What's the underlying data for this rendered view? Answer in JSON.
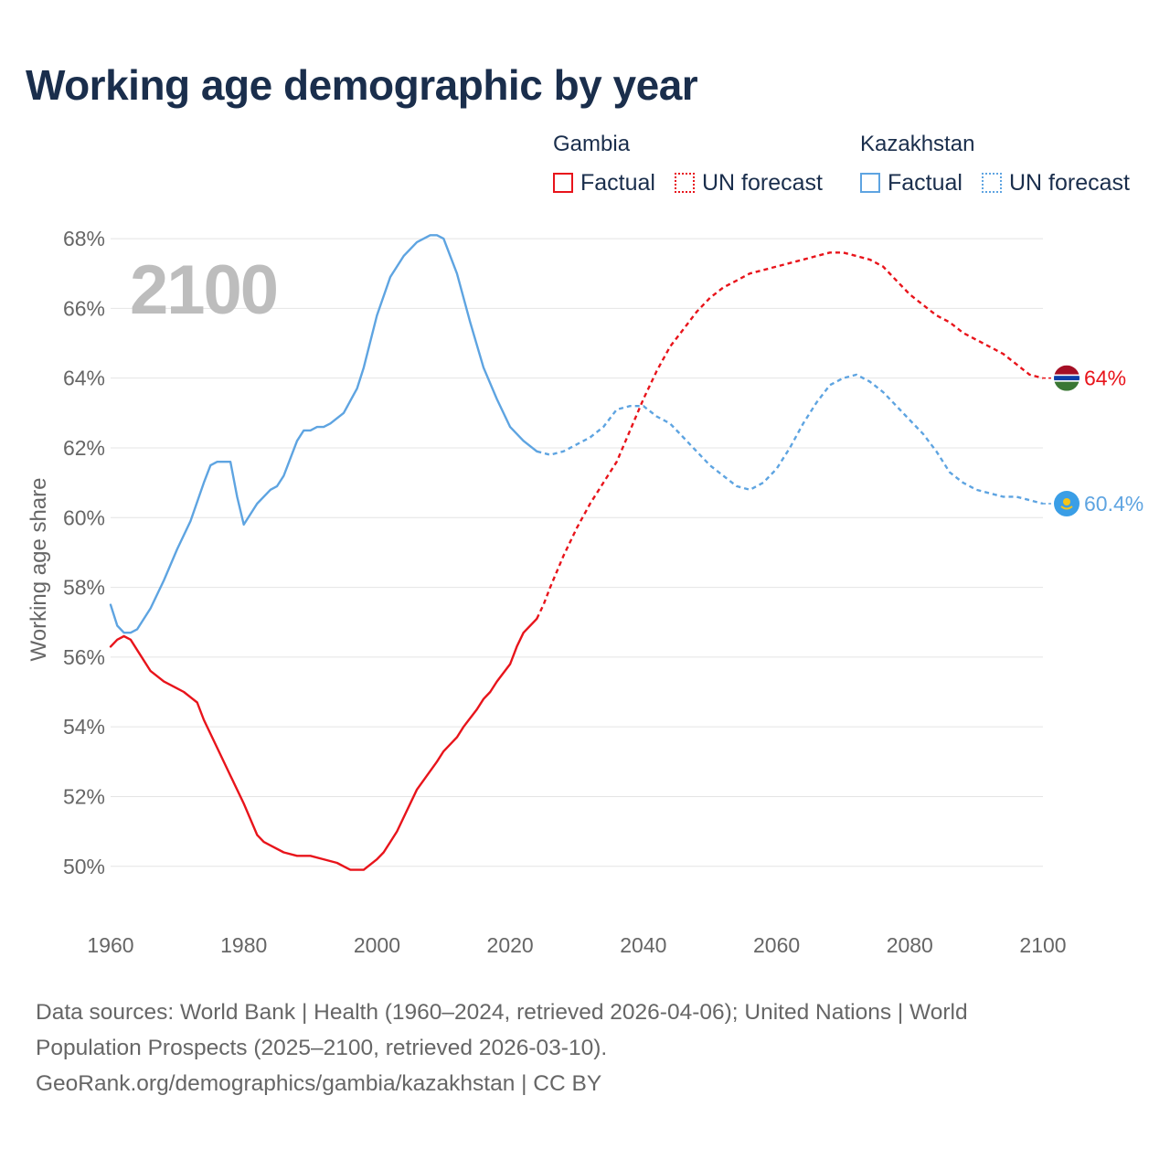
{
  "title": "Working age demographic by year",
  "legend": {
    "groups": [
      {
        "name": "Gambia",
        "color": "#e8141b",
        "factual_label": "Factual",
        "forecast_label": "UN forecast"
      },
      {
        "name": "Kazakhstan",
        "color": "#5ea4e1",
        "factual_label": "Factual",
        "forecast_label": "UN forecast"
      }
    ]
  },
  "year_label": "2100",
  "footer": {
    "line1": "Data sources: World Bank | Health (1960–2024, retrieved 2026-04-06); United Nations | World",
    "line2": "Population Prospects (2025–2100, retrieved 2026-03-10).",
    "line3": "GeoRank.org/demographics/gambia/kazakhstan | CC BY"
  },
  "chart_data": {
    "type": "line",
    "title": "Working age demographic by year",
    "xlabel": "",
    "ylabel": "Working age share",
    "xlim": [
      1960,
      2100
    ],
    "ylim": [
      48.5,
      68.5
    ],
    "xticks": [
      1960,
      1980,
      2000,
      2020,
      2040,
      2060,
      2080,
      2100
    ],
    "xtick_labels": [
      "1960",
      "1980",
      "2000",
      "2020",
      "2040",
      "2060",
      "2080",
      "2100"
    ],
    "yticks": [
      50,
      52,
      54,
      56,
      58,
      60,
      62,
      64,
      66,
      68
    ],
    "ytick_labels": [
      "50%",
      "52%",
      "54%",
      "56%",
      "58%",
      "60%",
      "62%",
      "64%",
      "66%",
      "68%"
    ],
    "grid": true,
    "factual_end_year": 2024,
    "series": [
      {
        "name": "Gambia",
        "color": "#e8141b",
        "end_label": "64%",
        "flag": "gambia",
        "x": [
          1960,
          1961,
          1962,
          1963,
          1964,
          1966,
          1968,
          1970,
          1971,
          1973,
          1974,
          1976,
          1978,
          1980,
          1982,
          1983,
          1984,
          1986,
          1988,
          1990,
          1992,
          1994,
          1996,
          1998,
          2000,
          2001,
          2002,
          2003,
          2006,
          2009,
          2010,
          2012,
          2013,
          2015,
          2016,
          2017,
          2018,
          2020,
          2021,
          2022,
          2024,
          2025,
          2026,
          2028,
          2030,
          2032,
          2034,
          2036,
          2038,
          2040,
          2042,
          2044,
          2046,
          2048,
          2050,
          2052,
          2054,
          2056,
          2058,
          2060,
          2062,
          2064,
          2066,
          2068,
          2070,
          2072,
          2074,
          2076,
          2078,
          2080,
          2082,
          2084,
          2086,
          2088,
          2090,
          2092,
          2094,
          2096,
          2098,
          2100
        ],
        "values": [
          56.3,
          56.5,
          56.6,
          56.5,
          56.2,
          55.6,
          55.3,
          55.1,
          55.0,
          54.7,
          54.2,
          53.4,
          52.6,
          51.8,
          50.9,
          50.7,
          50.6,
          50.4,
          50.3,
          50.3,
          50.2,
          50.1,
          49.9,
          49.9,
          50.2,
          50.4,
          50.7,
          51.0,
          52.2,
          53.0,
          53.3,
          53.7,
          54.0,
          54.5,
          54.8,
          55.0,
          55.3,
          55.8,
          56.3,
          56.7,
          57.1,
          57.5,
          58.0,
          58.9,
          59.7,
          60.4,
          61.0,
          61.6,
          62.5,
          63.4,
          64.2,
          64.9,
          65.4,
          65.9,
          66.3,
          66.6,
          66.8,
          67.0,
          67.1,
          67.2,
          67.3,
          67.4,
          67.5,
          67.6,
          67.6,
          67.5,
          67.4,
          67.2,
          66.8,
          66.4,
          66.1,
          65.8,
          65.6,
          65.3,
          65.1,
          64.9,
          64.7,
          64.4,
          64.1,
          64.0
        ]
      },
      {
        "name": "Kazakhstan",
        "color": "#5ea4e1",
        "end_label": "60.4%",
        "flag": "kazakhstan",
        "x": [
          1960,
          1961,
          1962,
          1963,
          1964,
          1966,
          1968,
          1970,
          1972,
          1974,
          1975,
          1976,
          1978,
          1979,
          1980,
          1982,
          1984,
          1985,
          1986,
          1988,
          1989,
          1990,
          1991,
          1992,
          1993,
          1995,
          1997,
          1998,
          2000,
          2002,
          2004,
          2006,
          2008,
          2009,
          2010,
          2012,
          2014,
          2016,
          2018,
          2020,
          2022,
          2024,
          2026,
          2028,
          2030,
          2032,
          2034,
          2036,
          2038,
          2040,
          2042,
          2044,
          2046,
          2048,
          2050,
          2052,
          2054,
          2056,
          2058,
          2060,
          2062,
          2064,
          2066,
          2068,
          2070,
          2072,
          2074,
          2076,
          2078,
          2080,
          2082,
          2084,
          2086,
          2088,
          2090,
          2092,
          2094,
          2096,
          2098,
          2100
        ],
        "values": [
          57.5,
          56.9,
          56.7,
          56.7,
          56.8,
          57.4,
          58.2,
          59.1,
          59.9,
          61.0,
          61.5,
          61.6,
          61.6,
          60.6,
          59.8,
          60.4,
          60.8,
          60.9,
          61.2,
          62.2,
          62.5,
          62.5,
          62.6,
          62.6,
          62.7,
          63.0,
          63.7,
          64.3,
          65.8,
          66.9,
          67.5,
          67.9,
          68.1,
          68.1,
          68.0,
          67.0,
          65.6,
          64.3,
          63.4,
          62.6,
          62.2,
          61.9,
          61.8,
          61.9,
          62.1,
          62.3,
          62.6,
          63.1,
          63.2,
          63.2,
          62.9,
          62.7,
          62.3,
          61.9,
          61.5,
          61.2,
          60.9,
          60.8,
          61.0,
          61.4,
          62.0,
          62.7,
          63.3,
          63.8,
          64.0,
          64.1,
          63.9,
          63.6,
          63.2,
          62.8,
          62.4,
          61.9,
          61.3,
          61.0,
          60.8,
          60.7,
          60.6,
          60.6,
          60.5,
          60.4
        ]
      }
    ]
  }
}
